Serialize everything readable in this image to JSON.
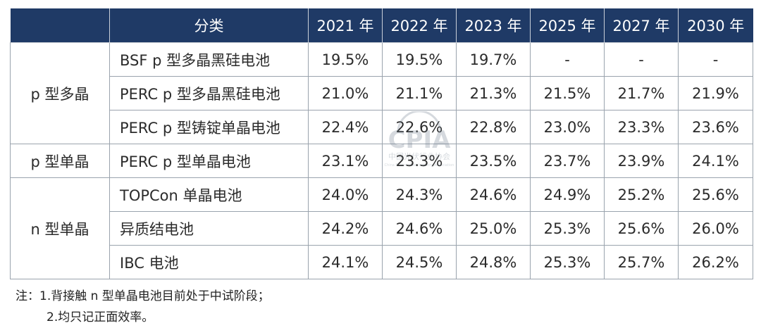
{
  "table": {
    "headers": [
      "",
      "分类",
      "2021 年",
      "2022 年",
      "2023 年",
      "2025 年",
      "2027 年",
      "2030 年"
    ],
    "groups": [
      {
        "label": "p 型多晶",
        "rows": [
          {
            "name": "BSF p 型多晶黑硅电池",
            "values": [
              "19.5%",
              "19.5%",
              "19.7%",
              "-",
              "-",
              "-"
            ]
          },
          {
            "name": "PERC p 型多晶黑硅电池",
            "values": [
              "21.0%",
              "21.1%",
              "21.3%",
              "21.5%",
              "21.7%",
              "21.9%"
            ]
          },
          {
            "name": "PERC p 型铸锭单晶电池",
            "values": [
              "22.4%",
              "22.6%",
              "22.8%",
              "23.0%",
              "23.3%",
              "23.6%"
            ]
          }
        ]
      },
      {
        "label": "p 型单晶",
        "rows": [
          {
            "name": "PERC p 型单晶电池",
            "values": [
              "23.1%",
              "23.3%",
              "23.5%",
              "23.7%",
              "23.9%",
              "24.1%"
            ]
          }
        ]
      },
      {
        "label": "n 型单晶",
        "rows": [
          {
            "name": "TOPCon 单晶电池",
            "values": [
              "24.0%",
              "24.3%",
              "24.6%",
              "24.9%",
              "25.2%",
              "25.6%"
            ]
          },
          {
            "name": "异质结电池",
            "values": [
              "24.2%",
              "24.6%",
              "25.0%",
              "25.3%",
              "25.6%",
              "26.0%"
            ]
          },
          {
            "name": "IBC 电池",
            "values": [
              "24.1%",
              "24.5%",
              "24.8%",
              "25.3%",
              "25.7%",
              "26.2%"
            ]
          }
        ]
      }
    ]
  },
  "notes": {
    "line1": "注：1.背接触  n 型单晶电池目前处于中试阶段；",
    "line2": "2.均只记正面效率。"
  },
  "watermark": {
    "logo_text": "CPIA",
    "cn_text": "中国光伏行业协会",
    "en_text": "China Photovoltaic Industry Association"
  },
  "colors": {
    "header_bg": "#1f3a66",
    "header_text": "#ffffff",
    "border": "#9aa3ad"
  }
}
